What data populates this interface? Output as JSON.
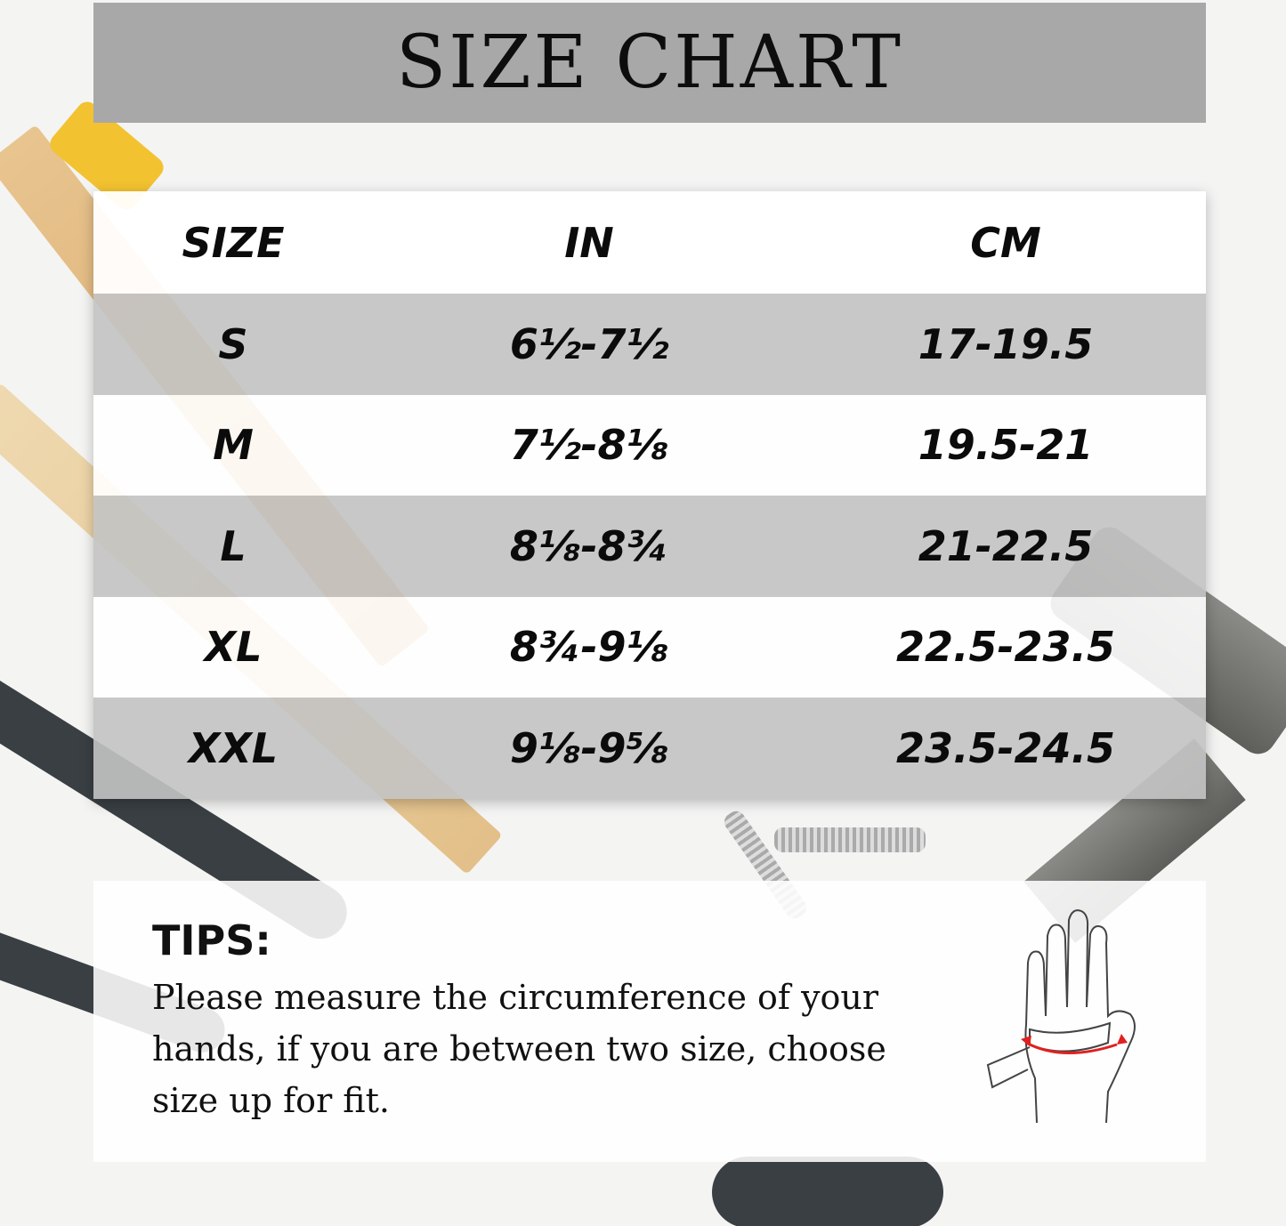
{
  "title": "SIZE CHART",
  "table": {
    "headers": [
      "SIZE",
      "IN",
      "CM"
    ],
    "rows": [
      {
        "size": "S",
        "in": "6½-7½",
        "cm": "17-19.5"
      },
      {
        "size": "M",
        "in": "7½-8⅛",
        "cm": "19.5-21"
      },
      {
        "size": "L",
        "in": "8⅛-8¾",
        "cm": "21-22.5"
      },
      {
        "size": "XL",
        "in": "8¾-9⅛",
        "cm": "22.5-23.5"
      },
      {
        "size": "XXL",
        "in": "9⅛-9⅝",
        "cm": "23.5-24.5"
      }
    ]
  },
  "tips": {
    "heading": "TIPS:",
    "text": "Please measure the circumference of your hands, if you are between two size, choose size up for fit."
  },
  "icons": {
    "hand_measure": "hand-measuring-tape-icon"
  },
  "colors": {
    "title_band": "#a8a8a8",
    "row_gray": "#c3c3c3",
    "tape_arrow": "#e02020"
  }
}
